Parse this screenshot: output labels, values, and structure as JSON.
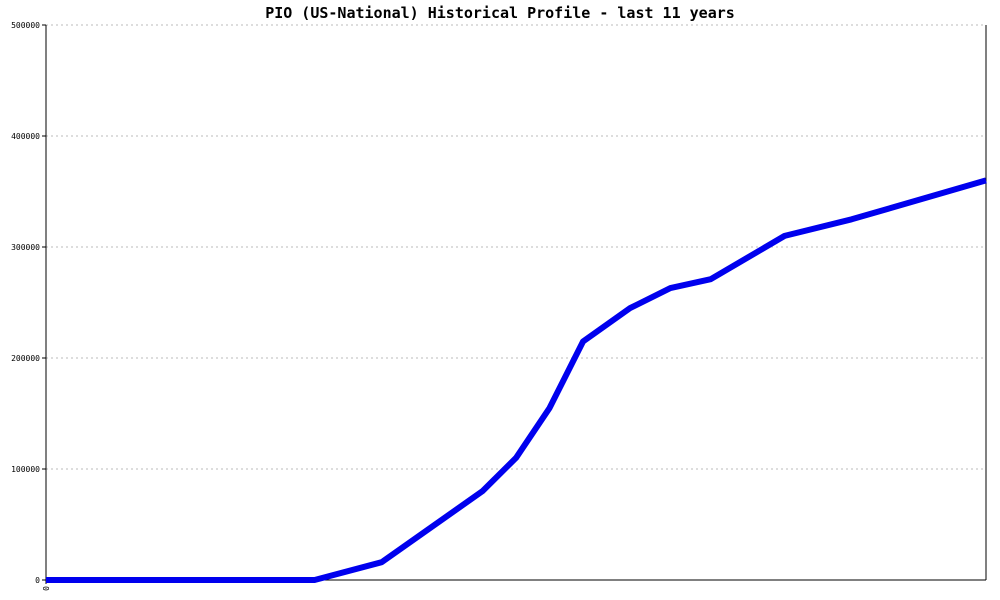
{
  "chart_data": {
    "type": "line",
    "title": "PIO (US-National) Historical Profile - last 11 years",
    "xlabel": "",
    "ylabel": "",
    "ylim": [
      0,
      500000
    ],
    "yticks": [
      0,
      100000,
      200000,
      300000,
      400000,
      500000
    ],
    "ytick_labels": [
      "0",
      "100000",
      "200000",
      "300000",
      "400000",
      "500000"
    ],
    "x_tick_labels": [
      "0"
    ],
    "grid": true,
    "line_color": "#0000ee",
    "grid_color": "#bbbbbb",
    "series": [
      {
        "points": [
          [
            0,
            0
          ],
          [
            4,
            0
          ],
          [
            5,
            16000
          ],
          [
            6.5,
            80000
          ],
          [
            7,
            110000
          ],
          [
            7.5,
            155000
          ],
          [
            8,
            215000
          ],
          [
            8.7,
            245000
          ],
          [
            9.3,
            263000
          ],
          [
            9.9,
            271000
          ],
          [
            11,
            310000
          ],
          [
            12,
            325000
          ],
          [
            14,
            360000
          ]
        ]
      }
    ]
  }
}
